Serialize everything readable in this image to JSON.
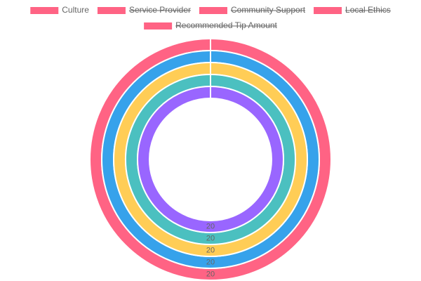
{
  "chart_data": {
    "type": "doughnut",
    "categories": [
      "Culture",
      "Service Provider",
      "Community Support",
      "Local Ethics",
      "Recommended Tip Amount"
    ],
    "hidden": [
      false,
      true,
      true,
      true,
      true
    ],
    "legend_position": "top",
    "series": [
      {
        "color": "#ff6384",
        "values": [
          20,
          null,
          null,
          null,
          null
        ]
      },
      {
        "color": "#36a2eb",
        "values": [
          20,
          null,
          null,
          null,
          null
        ]
      },
      {
        "color": "#ffcd56",
        "values": [
          20,
          null,
          null,
          null,
          null
        ]
      },
      {
        "color": "#4bc0c0",
        "values": [
          20,
          null,
          null,
          null,
          null
        ]
      },
      {
        "color": "#9966ff",
        "values": [
          20,
          null,
          null,
          null,
          null
        ]
      }
    ]
  }
}
